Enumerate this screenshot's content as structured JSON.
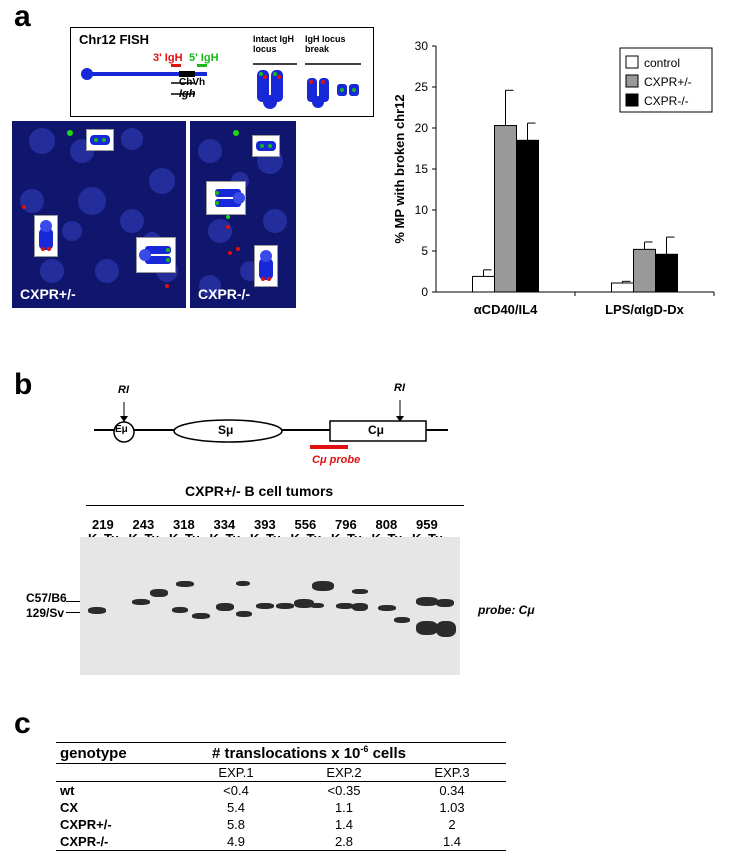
{
  "panels": {
    "a": "a",
    "b": "b",
    "c": "c"
  },
  "fish": {
    "title": "Chr12 FISH",
    "probe_3": "3' IgH",
    "probe_5": "5' IgH",
    "chvh": "ChVh",
    "igh": "Igh",
    "intact_line1": "Intact IgH",
    "intact_line2": "locus",
    "break_line1": "IgH locus",
    "break_line2": "break",
    "colors": {
      "red": "#e01010",
      "green": "#18b818",
      "blue": "#1628d8"
    }
  },
  "micrographs": [
    {
      "label": "CXPR+/-"
    },
    {
      "label": "CXPR-/-"
    }
  ],
  "chart_data": {
    "type": "bar",
    "ylabel": "% MP with broken chr12",
    "ylim": [
      0,
      30
    ],
    "yticks": [
      "0",
      "5",
      "10",
      "15",
      "20",
      "25",
      "30"
    ],
    "categories": [
      "αCD40/IL4",
      "LPS/αIgD-Dx"
    ],
    "legend_position": "top-right",
    "series": [
      {
        "name": "control",
        "color": "#ffffff",
        "values": [
          1.9,
          1.1
        ],
        "errors": [
          0.8,
          0.2
        ]
      },
      {
        "name": "CXPR+/-",
        "color": "#999999",
        "values": [
          20.3,
          5.2
        ],
        "errors": [
          4.3,
          0.9
        ]
      },
      {
        "name": "CXPR-/-",
        "color": "#000000",
        "values": [
          18.5,
          4.6
        ],
        "errors": [
          2.1,
          2.1
        ]
      }
    ]
  },
  "schematic": {
    "ri_left": "RI",
    "ri_right": "RI",
    "emu": "Eμ",
    "smu": "Sμ",
    "cmu": "Cμ",
    "probe": "Cμ probe"
  },
  "blot": {
    "title": "CXPR+/- B cell tumors",
    "tumors": [
      "219",
      "243",
      "318",
      "334",
      "393",
      "556",
      "796",
      "808",
      "959"
    ],
    "lane_k": "K",
    "lane_tu": "Tu",
    "marker_top": "C57/B6",
    "marker_bottom": "129/Sv",
    "probe_label": "probe: Cμ"
  },
  "table": {
    "col_genotype": "genotype",
    "col_main": "# translocations x 10",
    "col_exp": "-6",
    "col_main_tail": " cells",
    "experiments": [
      "EXP.1",
      "EXP.2",
      "EXP.3"
    ],
    "rows": [
      {
        "genotype": "wt",
        "values": [
          "<0.4",
          "<0.35",
          "0.34"
        ]
      },
      {
        "genotype": "CX",
        "values": [
          "5.4",
          "1.1",
          "1.03"
        ]
      },
      {
        "genotype": "CXPR+/-",
        "values": [
          "5.8",
          "1.4",
          "2"
        ]
      },
      {
        "genotype": "CXPR-/-",
        "values": [
          "4.9",
          "2.8",
          "1.4"
        ]
      }
    ]
  }
}
